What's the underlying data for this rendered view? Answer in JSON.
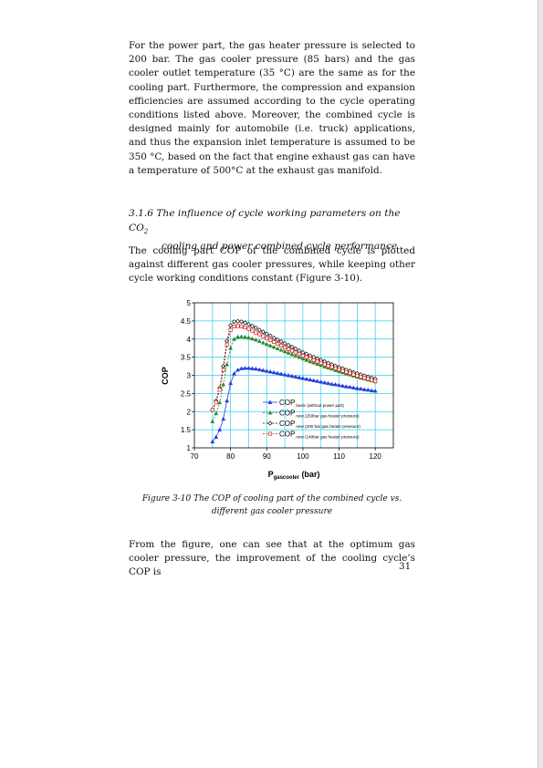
{
  "paragraph1": "For the power part, the gas heater pressure is selected to 200 bar. The gas cooler pressure (85 bars) and the gas cooler outlet temperature (35 °C) are the same as for the cooling part. Furthermore, the compression and expansion efficiencies are assumed according to the cycle operating conditions listed above. Moreover, the combined cycle is designed mainly for automobile (i.e. truck) applications, and thus the expansion inlet temperature is assumed to be 350 °C, based on the fact that engine exhaust gas can have a temperature of 500°C at the exhaust gas manifold.",
  "heading": {
    "line1_prefix": "3.1.6 The influence of cycle working parameters on the CO",
    "line1_sub": "2",
    "line2": "cooling and power combined cycle performance"
  },
  "paragraph2": "The cooling part COP of the combined cycle is plotted against different gas cooler pressures, while keeping other cycle working conditions constant (Figure 3-10).",
  "caption": "Figure 3-10 The COP of cooling part of the combined cycle vs. different gas cooler pressure",
  "paragraph3": "From the figure, one can see that at the optimum gas cooler pressure, the improvement of the cooling cycle’s COP is",
  "page_number": "31",
  "chart_data": {
    "type": "line",
    "xlabel": "P",
    "xlabel_sub": "gascooler",
    "xlabel_suffix": " (bar)",
    "ylabel": "COP",
    "xlim": [
      70,
      125
    ],
    "ylim": [
      1,
      5
    ],
    "xticks": [
      "70",
      "80",
      "90",
      "100",
      "110",
      "120"
    ],
    "yticks": [
      "1",
      "1.5",
      "2",
      "2.5",
      "3",
      "3.5",
      "4",
      "4.5",
      "5"
    ],
    "grid": true,
    "legend_position": "lower-right",
    "x": [
      75,
      76,
      77,
      78,
      79,
      80,
      81,
      82,
      83,
      84,
      85,
      86,
      87,
      88,
      89,
      90,
      91,
      92,
      93,
      94,
      95,
      96,
      97,
      98,
      99,
      100,
      101,
      102,
      103,
      104,
      105,
      106,
      107,
      108,
      109,
      110,
      111,
      112,
      113,
      114,
      115,
      116,
      117,
      118,
      119,
      120
    ],
    "series": [
      {
        "name": "COP",
        "name_sub": "basic (without power part)",
        "color": "#1f3fd6",
        "marker": "triangle",
        "values": [
          1.17,
          1.3,
          1.5,
          1.8,
          2.3,
          2.78,
          3.05,
          3.15,
          3.19,
          3.2,
          3.2,
          3.19,
          3.18,
          3.16,
          3.14,
          3.12,
          3.1,
          3.08,
          3.06,
          3.04,
          3.02,
          3.0,
          2.98,
          2.96,
          2.94,
          2.92,
          2.9,
          2.88,
          2.86,
          2.84,
          2.82,
          2.8,
          2.78,
          2.76,
          2.75,
          2.73,
          2.71,
          2.69,
          2.68,
          2.66,
          2.64,
          2.63,
          2.61,
          2.6,
          2.58,
          2.57
        ]
      },
      {
        "name": "COP",
        "name_sub": "new (250bar gas heater pressure)",
        "color": "#2a8a2a",
        "marker": "triangle",
        "values": [
          1.73,
          1.95,
          2.25,
          2.75,
          3.3,
          3.75,
          4.0,
          4.06,
          4.07,
          4.06,
          4.04,
          4.01,
          3.98,
          3.94,
          3.9,
          3.86,
          3.82,
          3.78,
          3.74,
          3.7,
          3.66,
          3.62,
          3.58,
          3.54,
          3.5,
          3.46,
          3.42,
          3.38,
          3.35,
          3.31,
          3.28,
          3.24,
          3.21,
          3.18,
          3.14,
          3.11,
          3.08,
          3.05,
          3.02,
          2.99,
          2.96,
          2.93,
          2.91,
          2.88,
          2.86,
          2.83
        ]
      },
      {
        "name": "COP",
        "name_sub": "new (200 bar gas heater pressure)",
        "color": "#111111",
        "marker": "diamond",
        "values": [
          2.05,
          2.3,
          2.65,
          3.25,
          3.95,
          4.38,
          4.48,
          4.49,
          4.48,
          4.45,
          4.41,
          4.36,
          4.31,
          4.25,
          4.2,
          4.14,
          4.09,
          4.03,
          3.98,
          3.93,
          3.88,
          3.83,
          3.78,
          3.73,
          3.68,
          3.63,
          3.59,
          3.54,
          3.5,
          3.46,
          3.42,
          3.38,
          3.34,
          3.3,
          3.26,
          3.22,
          3.19,
          3.15,
          3.12,
          3.08,
          3.05,
          3.02,
          2.99,
          2.96,
          2.93,
          2.9
        ]
      },
      {
        "name": "COP",
        "name_sub": "new (140bar gas heater pressure)",
        "color": "#d62020",
        "marker": "square",
        "values": [
          2.05,
          2.25,
          2.6,
          3.15,
          3.85,
          4.25,
          4.35,
          4.36,
          4.35,
          4.32,
          4.28,
          4.23,
          4.18,
          4.13,
          4.08,
          4.02,
          3.97,
          3.92,
          3.87,
          3.82,
          3.77,
          3.72,
          3.68,
          3.63,
          3.59,
          3.54,
          3.5,
          3.46,
          3.42,
          3.38,
          3.34,
          3.3,
          3.26,
          3.23,
          3.19,
          3.16,
          3.12,
          3.09,
          3.06,
          3.02,
          2.99,
          2.96,
          2.93,
          2.9,
          2.87,
          2.84
        ]
      }
    ]
  }
}
